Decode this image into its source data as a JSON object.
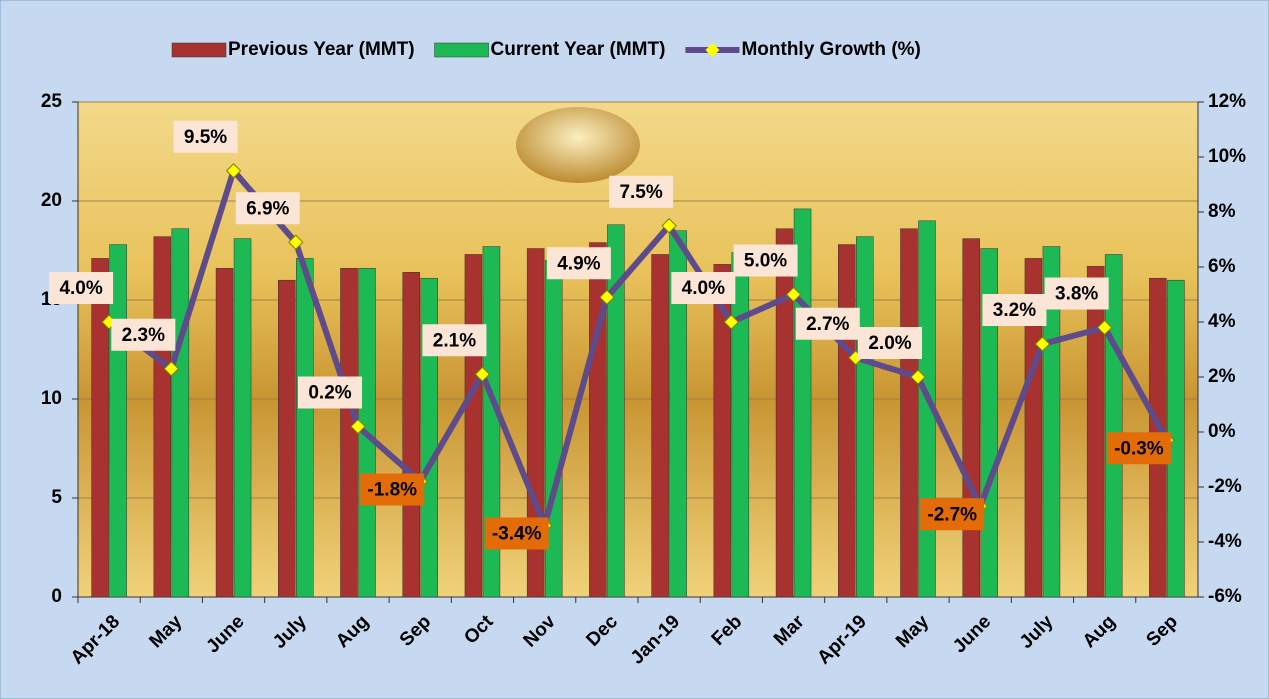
{
  "chart_data": {
    "type": "bar-line",
    "categories": [
      "Apr-18",
      "May",
      "June",
      "July",
      "Aug",
      "Sep",
      "Oct",
      "Nov",
      "Dec",
      "Jan-19",
      "Feb",
      "Mar",
      "Apr-19",
      "May",
      "June",
      "July",
      "Aug",
      "Sep"
    ],
    "series": [
      {
        "name": "Previous Year (MMT)",
        "color": "#a8322f",
        "type": "bar",
        "values": [
          17.1,
          18.2,
          16.6,
          16.0,
          16.6,
          16.4,
          17.3,
          17.6,
          17.9,
          17.3,
          16.8,
          18.6,
          17.8,
          18.6,
          18.1,
          17.1,
          16.7,
          16.1
        ]
      },
      {
        "name": "Current Year (MMT)",
        "color": "#1db954",
        "type": "bar",
        "values": [
          17.8,
          18.6,
          18.1,
          17.1,
          16.6,
          16.1,
          17.7,
          17.0,
          18.8,
          18.5,
          17.4,
          19.6,
          18.2,
          19.0,
          17.6,
          17.7,
          17.3,
          16.0
        ]
      },
      {
        "name": "Monthly Growth (%)",
        "color": "#5e4b8b",
        "marker_color": "#ffff00",
        "type": "line",
        "axis": "y2",
        "values": [
          4.0,
          2.3,
          9.5,
          6.9,
          0.2,
          -1.8,
          2.1,
          -3.4,
          4.9,
          7.5,
          4.0,
          5.0,
          2.7,
          2.0,
          -2.7,
          3.2,
          3.8,
          -0.3
        ],
        "value_labels": [
          "4.0%",
          "2.3%",
          "9.5%",
          "6.9%",
          "0.2%",
          "-1.8%",
          "2.1%",
          "-3.4%",
          "4.9%",
          "7.5%",
          "4.0%",
          "5.0%",
          "2.7%",
          "2.0%",
          "-2.7%",
          "3.2%",
          "3.8%",
          "-0.3%"
        ]
      }
    ],
    "ylim": [
      0,
      25
    ],
    "yticks": [
      0,
      5,
      10,
      15,
      20,
      25
    ],
    "y2lim": [
      -6,
      12
    ],
    "y2ticks": [
      {
        "value": -6,
        "label": "-6%"
      },
      {
        "value": -4,
        "label": "-4%"
      },
      {
        "value": -2,
        "label": "-2%"
      },
      {
        "value": 0,
        "label": "0%"
      },
      {
        "value": 2,
        "label": "2%"
      },
      {
        "value": 4,
        "label": "4%"
      },
      {
        "value": 6,
        "label": "6%"
      },
      {
        "value": 8,
        "label": "8%"
      },
      {
        "value": 10,
        "label": "10%"
      },
      {
        "value": 12,
        "label": "12%"
      }
    ],
    "grid": true,
    "legend": "top"
  }
}
